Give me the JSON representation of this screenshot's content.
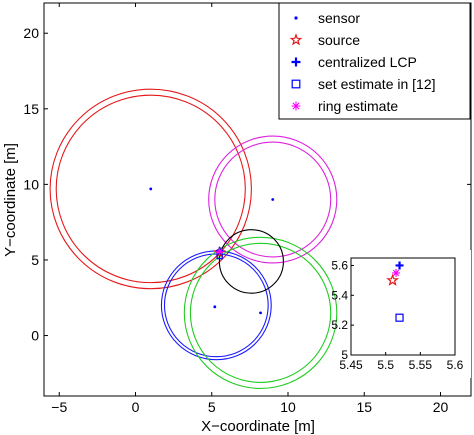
{
  "chart_data": [
    {
      "type": "scatter",
      "title": "",
      "xlabel": "X−coordinate [m]",
      "ylabel": "Y−coordinate [m]",
      "xlim": [
        -6,
        22
      ],
      "ylim": [
        -4,
        22
      ],
      "xticks": [
        -5,
        0,
        5,
        10,
        15,
        20
      ],
      "xtick_labels": [
        "−5",
        "0",
        "5",
        "10",
        "15",
        "20"
      ],
      "yticks": [
        0,
        5,
        10,
        15,
        20
      ],
      "ytick_labels": [
        "0",
        "5",
        "10",
        "15",
        "20"
      ],
      "grid": false,
      "legend_position": "top-right",
      "legend": [
        {
          "label": "sensor",
          "marker": "dot",
          "color": "#0000ff"
        },
        {
          "label": "source",
          "marker": "star",
          "color": "#e41a1c"
        },
        {
          "label": "centralized LCP",
          "marker": "plus",
          "color": "#0000ff"
        },
        {
          "label": "set estimate in [12]",
          "marker": "square",
          "color": "#0000ff"
        },
        {
          "label": "ring estimate",
          "marker": "asterisk",
          "color": "#ff00ff"
        }
      ],
      "sensors": [
        {
          "x": 1.0,
          "y": 9.7
        },
        {
          "x": 9.0,
          "y": 9.0
        },
        {
          "x": 5.2,
          "y": 1.9
        },
        {
          "x": 8.2,
          "y": 1.5
        }
      ],
      "rings": [
        {
          "color": "#e41a1c",
          "cx": 1.0,
          "cy": 9.7,
          "radii": [
            6.2,
            6.6
          ]
        },
        {
          "color": "#dd22dd",
          "cx": 9.0,
          "cy": 9.0,
          "radii": [
            3.8,
            4.2
          ]
        },
        {
          "color": "#1a1aff",
          "cx": 5.3,
          "cy": 2.0,
          "radii": [
            3.4,
            3.6
          ]
        },
        {
          "color": "#22cc22",
          "cx": 8.2,
          "cy": 1.5,
          "radii": [
            4.6,
            5.0
          ]
        },
        {
          "color": "#000000",
          "cx": 7.6,
          "cy": 4.9,
          "radii": [
            2.1
          ]
        }
      ],
      "source": {
        "x": 5.51,
        "y": 5.5
      },
      "centralized_lcp": {
        "x": 5.52,
        "y": 5.6
      },
      "set_estimate": {
        "x": 5.52,
        "y": 5.25
      },
      "ring_estimate": {
        "x": 5.515,
        "y": 5.55
      }
    },
    {
      "type": "scatter",
      "title": "",
      "xlim": [
        5.45,
        5.6
      ],
      "ylim": [
        5.0,
        5.65
      ],
      "xticks": [
        5.45,
        5.5,
        5.55,
        5.6
      ],
      "xtick_labels": [
        "5.45",
        "5.5",
        "5.55",
        "5.6"
      ],
      "yticks": [
        5.0,
        5.2,
        5.4,
        5.6
      ],
      "ytick_labels": [
        "5",
        "5.2",
        "5.4",
        "5.6"
      ],
      "source": {
        "x": 5.51,
        "y": 5.5
      },
      "centralized_lcp": {
        "x": 5.52,
        "y": 5.6
      },
      "set_estimate": {
        "x": 5.52,
        "y": 5.25
      },
      "ring_estimate": {
        "x": 5.515,
        "y": 5.55
      }
    }
  ]
}
